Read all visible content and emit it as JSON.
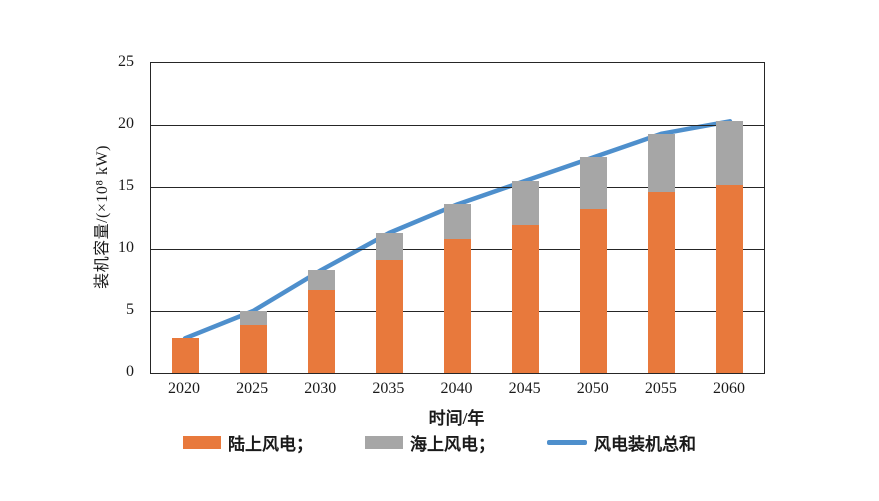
{
  "chart_data": {
    "type": "bar",
    "stacked": true,
    "categories": [
      "2020",
      "2025",
      "2030",
      "2035",
      "2040",
      "2045",
      "2050",
      "2055",
      "2060"
    ],
    "series": [
      {
        "name": "陆上风电",
        "kind": "bar",
        "color": "#E8793C",
        "values": [
          2.8,
          3.9,
          6.7,
          9.1,
          10.8,
          11.9,
          13.2,
          14.6,
          15.2
        ]
      },
      {
        "name": "海上风电",
        "kind": "bar",
        "color": "#A6A6A6",
        "values": [
          0,
          1.1,
          1.6,
          2.2,
          2.8,
          3.6,
          4.2,
          4.7,
          5.1
        ]
      },
      {
        "name": "风电装机总和",
        "kind": "line",
        "color": "#4E8FCC",
        "values": [
          2.8,
          5.0,
          8.3,
          11.3,
          13.6,
          15.5,
          17.4,
          19.3,
          20.3
        ]
      }
    ],
    "title": "",
    "xlabel": "时间/年",
    "ylabel": "装机容量/(×10⁸ kW)",
    "ylim": [
      0,
      25
    ],
    "yticks": [
      0,
      5,
      10,
      15,
      20,
      25
    ],
    "grid": true,
    "legend_position": "bottom",
    "legend": [
      "陆上风电；",
      "海上风电；",
      "风电装机总和"
    ]
  },
  "colors": {
    "onshore_bar": "#E8793C",
    "offshore_bar": "#A6A6A6",
    "total_line": "#4E8FCC",
    "axis": "#262626",
    "background": "#ffffff"
  }
}
